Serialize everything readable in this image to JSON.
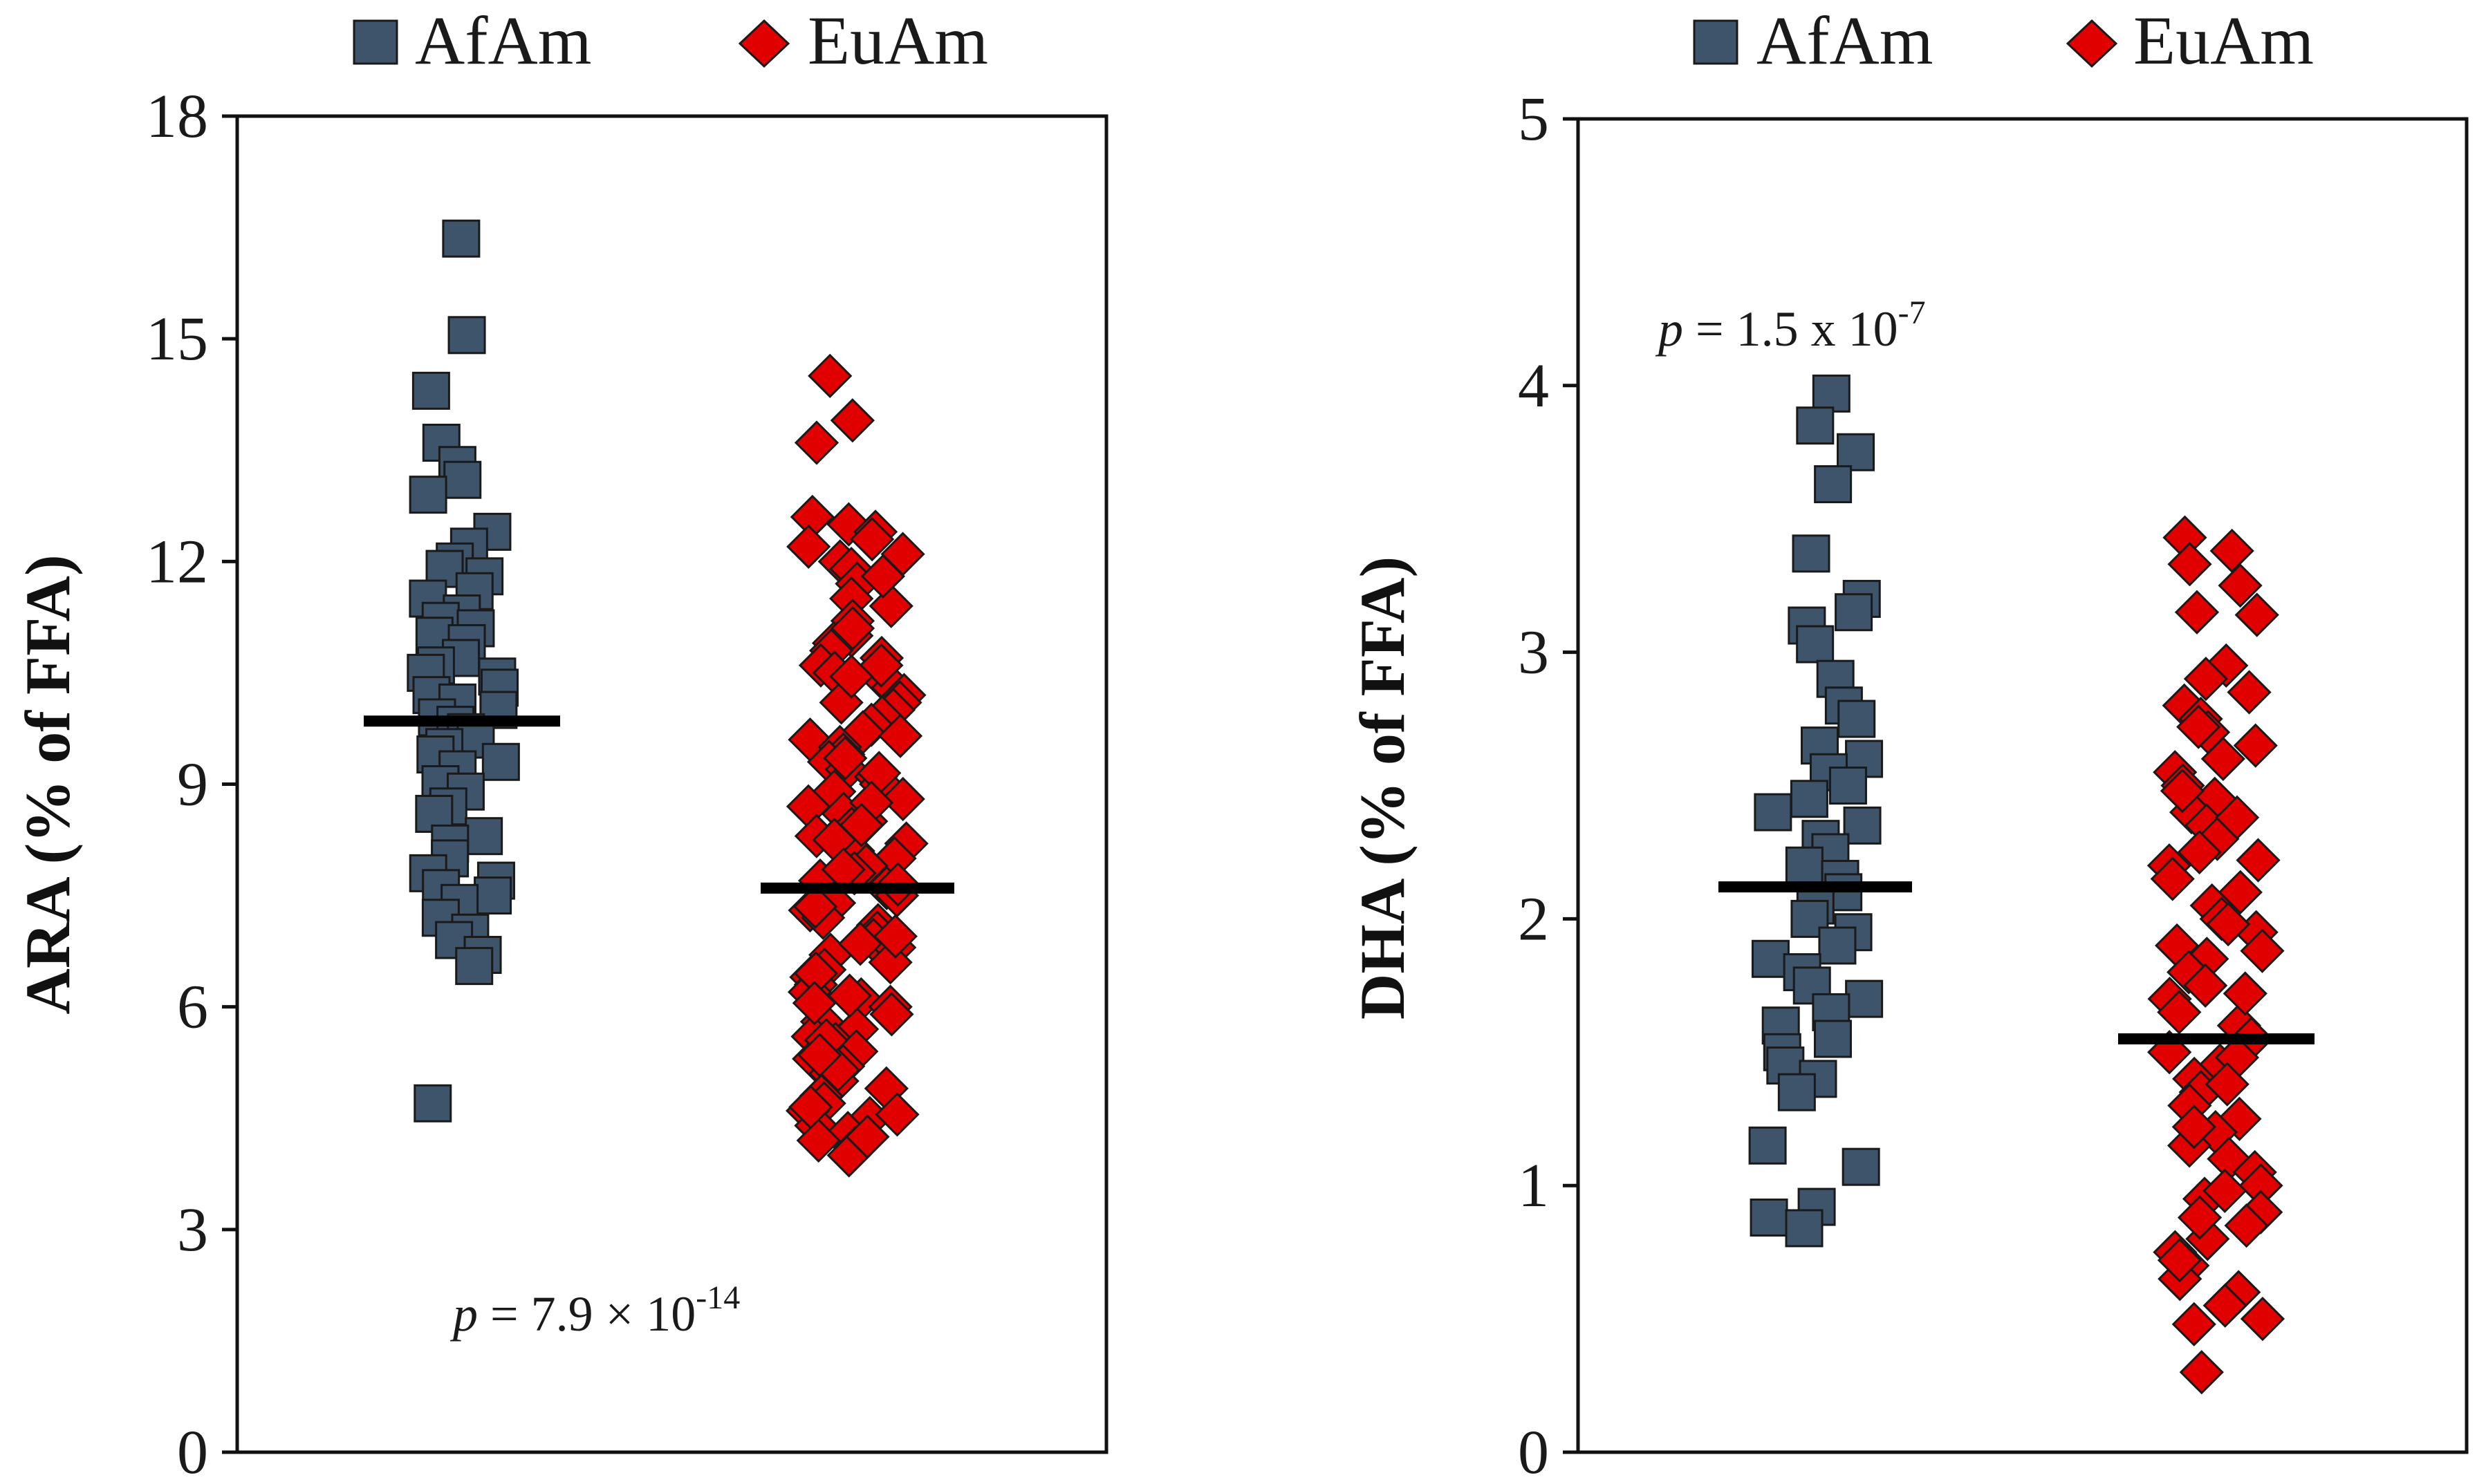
{
  "chart_data": [
    {
      "type": "scatter",
      "subtype": "strip",
      "ylabel": "ARA (% of FFA)",
      "ylim": [
        0,
        18
      ],
      "yticks": [
        "0",
        "3",
        "6",
        "9",
        "12",
        "15",
        "18"
      ],
      "legend": [
        "AfAm",
        "EuAm"
      ],
      "legend_position": "top",
      "pvalue": {
        "prefix": "p",
        "equals": " = 7.9 × 10",
        "exponent": "-14"
      },
      "series": [
        {
          "name": "AfAm",
          "marker": "square",
          "color": "#3e546b",
          "mean": 9.85,
          "values": [
            16.35,
            15.05,
            14.3,
            13.6,
            13.3,
            13.1,
            12.9,
            12.4,
            12.2,
            12.0,
            11.9,
            11.8,
            11.6,
            11.5,
            11.3,
            11.2,
            11.1,
            11.0,
            10.9,
            10.7,
            10.6,
            10.5,
            10.45,
            10.3,
            10.2,
            10.1,
            10.0,
            9.9,
            9.8,
            9.7,
            9.6,
            9.5,
            9.4,
            9.3,
            9.2,
            9.0,
            8.9,
            8.7,
            8.6,
            8.3,
            8.2,
            8.0,
            7.8,
            7.7,
            7.6,
            7.5,
            7.4,
            7.2,
            7.0,
            6.9,
            6.7,
            6.55,
            4.7
          ]
        },
        {
          "name": "EuAm",
          "marker": "diamond",
          "color": "#e00000",
          "mean": 7.6,
          "values": [
            14.5,
            13.9,
            13.6,
            12.6,
            12.5,
            12.4,
            12.3,
            12.1,
            12.0,
            11.9,
            11.7,
            11.5,
            11.4,
            11.2,
            11.0,
            10.9,
            10.8,
            10.7,
            10.6,
            10.5,
            10.4,
            10.3,
            10.2,
            10.1,
            10.0,
            9.9,
            9.8,
            9.7,
            9.6,
            9.5,
            9.4,
            9.3,
            9.2,
            9.1,
            9.0,
            8.9,
            8.8,
            8.7,
            8.6,
            8.5,
            8.4,
            8.3,
            8.2,
            8.1,
            8.0,
            7.9,
            7.8,
            7.7,
            7.6,
            7.5,
            7.4,
            7.3,
            7.2,
            7.1,
            7.0,
            6.9,
            6.8,
            6.7,
            6.6,
            6.5,
            6.4,
            6.3,
            6.2,
            6.1,
            6.0,
            5.9,
            5.8,
            5.7,
            5.6,
            5.5,
            5.4,
            5.3,
            5.2,
            5.1,
            5.0,
            4.9,
            4.8,
            4.7,
            4.6,
            4.5,
            4.4,
            4.3,
            4.2,
            4.1,
            4.0,
            12.2,
            11.8,
            11.1,
            10.6,
            10.1,
            9.65,
            9.15,
            8.75,
            8.25,
            7.85,
            7.35,
            6.95,
            6.45,
            6.05,
            5.55,
            5.15,
            4.65,
            4.25,
            10.45,
            9.35,
            8.45,
            7.65,
            6.85,
            6.15,
            5.35,
            4.55
          ]
        }
      ]
    },
    {
      "type": "scatter",
      "subtype": "strip",
      "ylabel": "DHA (% of FFA)",
      "ylim": [
        0,
        5
      ],
      "yticks": [
        "0",
        "1",
        "2",
        "3",
        "4",
        "5"
      ],
      "legend": [
        "AfAm",
        "EuAm"
      ],
      "legend_position": "top",
      "pvalue": {
        "prefix": "p",
        "equals": " = 1.5 x 10",
        "exponent": "-7"
      },
      "series": [
        {
          "name": "AfAm",
          "marker": "square",
          "color": "#3e546b",
          "mean": 2.12,
          "values": [
            3.97,
            3.85,
            3.75,
            3.63,
            3.37,
            3.2,
            3.15,
            3.1,
            3.03,
            2.9,
            2.8,
            2.75,
            2.65,
            2.6,
            2.55,
            2.5,
            2.45,
            2.4,
            2.35,
            2.3,
            2.25,
            2.2,
            2.15,
            2.1,
            2.05,
            2.0,
            1.95,
            1.9,
            1.85,
            1.8,
            1.75,
            1.7,
            1.65,
            1.6,
            1.55,
            1.5,
            1.45,
            1.4,
            1.35,
            1.15,
            1.07,
            0.92,
            0.88,
            0.84
          ]
        },
        {
          "name": "EuAm",
          "marker": "diamond",
          "color": "#e00000",
          "mean": 1.55,
          "values": [
            3.43,
            3.38,
            3.33,
            3.25,
            3.15,
            3.14,
            2.95,
            2.9,
            2.85,
            2.8,
            2.75,
            2.7,
            2.65,
            2.6,
            2.55,
            2.5,
            2.45,
            2.4,
            2.35,
            2.3,
            2.25,
            2.2,
            2.15,
            2.1,
            2.05,
            2.0,
            1.95,
            1.9,
            1.85,
            1.8,
            1.75,
            1.7,
            1.65,
            1.6,
            1.55,
            1.5,
            1.45,
            1.4,
            1.35,
            1.3,
            1.25,
            1.2,
            1.15,
            1.1,
            1.05,
            1.0,
            0.95,
            0.9,
            0.85,
            0.8,
            0.75,
            0.7,
            0.65,
            0.6,
            0.55,
            0.5,
            0.48,
            0.3,
            2.72,
            2.48,
            2.22,
            1.98,
            1.72,
            1.48,
            1.22,
            0.98,
            0.72,
            2.38,
            1.88,
            1.38,
            0.88
          ]
        }
      ]
    }
  ]
}
